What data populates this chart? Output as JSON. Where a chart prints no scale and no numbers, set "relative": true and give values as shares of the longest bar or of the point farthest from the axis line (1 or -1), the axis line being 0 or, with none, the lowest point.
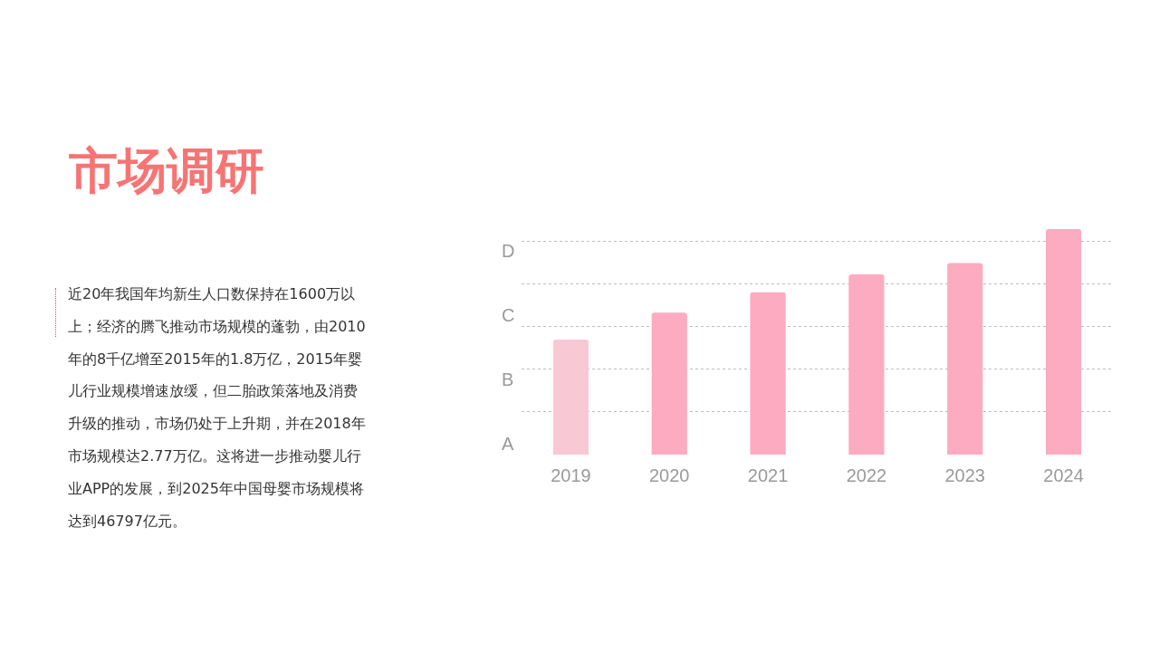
{
  "chart_data": {
    "type": "bar",
    "title": "市场调研",
    "subtitle": "近20年我国年均新生人口数保持在1600万以上；经济的腾飞推动市场规模的蓬勃，由2010年的8千亿增至2015年的1.8万亿，2015年婴儿行业规模增速放缓，但二胎政策落地及消费升级的推动，市场仍处于上升期，并在2018年市场规模达2.77万亿。这将进一步推动婴儿行业APP的发展，到2025年中国母婴市场规模将达到46797亿元。",
    "categories": [
      "2019",
      "2020",
      "2021",
      "2022",
      "2023",
      "2024"
    ],
    "values": [
      0.51,
      0.63,
      0.72,
      0.8,
      0.85,
      1
    ],
    "colors": [
      "#f9c8d5",
      "#fcabc1",
      "#fcabc1",
      "#fcabc1",
      "#fcabc1",
      "#fcabc1"
    ],
    "relative": true,
    "grid": "y",
    "annotations": [
      "A",
      "B",
      "C",
      "D"
    ]
  }
}
